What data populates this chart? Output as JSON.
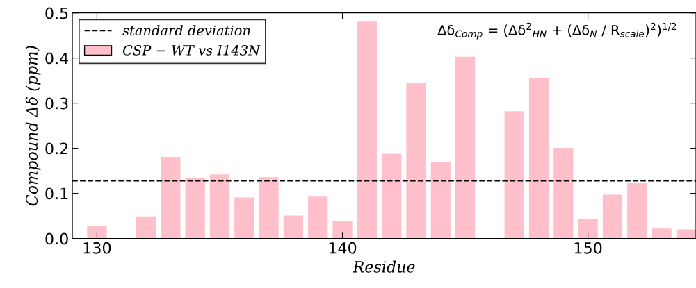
{
  "chart_data": {
    "type": "bar",
    "xlabel": "Residue",
    "ylabel": "Compound Δδ (ppm)",
    "x": [
      130,
      132,
      133,
      134,
      135,
      136,
      137,
      138,
      139,
      140,
      141,
      142,
      143,
      144,
      145,
      147,
      148,
      149,
      150,
      151,
      152,
      153,
      154
    ],
    "series": [
      {
        "name": "CSP − WT vs I143N",
        "color": "#ffc0cb",
        "values": [
          0.028,
          0.049,
          0.181,
          0.134,
          0.142,
          0.091,
          0.136,
          0.051,
          0.093,
          0.039,
          0.482,
          0.188,
          0.344,
          0.17,
          0.403,
          0.282,
          0.356,
          0.201,
          0.043,
          0.097,
          0.123,
          0.022,
          0.02
        ]
      }
    ],
    "xlim": [
      129.0,
      154.4
    ],
    "xticks": [
      130,
      140,
      150
    ],
    "ylim": [
      0,
      0.5
    ],
    "yticks": [
      {
        "value": 0,
        "label": "0.0"
      },
      0.1,
      0.2,
      0.3,
      0.4,
      0.5
    ],
    "ref_lines": [
      {
        "axis": "y",
        "value": 0.128,
        "label": "standard deviation",
        "color": "#000000",
        "line_style": "dashed"
      }
    ],
    "annotations": [
      "Δδ$_{Comp}$ = (Δδ$^{2}$$_{HN}$ + (Δδ$_{N}$ / R$_{scale}$)$^{2}$)$^{1/2}$"
    ],
    "legend": "top left",
    "grid": false
  }
}
